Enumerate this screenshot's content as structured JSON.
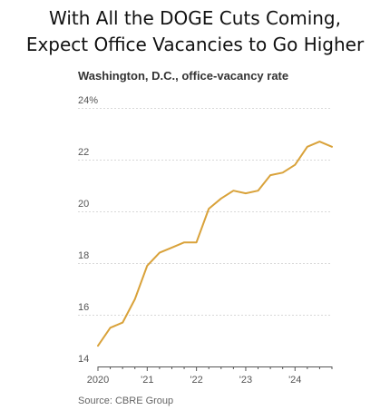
{
  "headline": {
    "line1": "With All the DOGE Cuts Coming,",
    "line2": "Expect Office Vacancies to Go Higher"
  },
  "source": "Source: CBRE Group",
  "colors": {
    "line": "#d9a23a",
    "grid": "#d9d9d9",
    "text": "#333333"
  },
  "chart_data": {
    "type": "line",
    "title": "Washington, D.C., office-vacancy rate",
    "xlabel": "",
    "ylabel": "",
    "ylim": [
      14,
      24
    ],
    "xlim": [
      2020.0,
      2024.75
    ],
    "y_ticks": [
      {
        "value": 24,
        "label": "24%"
      },
      {
        "value": 22,
        "label": "22"
      },
      {
        "value": 20,
        "label": "20"
      },
      {
        "value": 18,
        "label": "18"
      },
      {
        "value": 16,
        "label": "16"
      },
      {
        "value": 14,
        "label": "14"
      }
    ],
    "x_ticks": [
      {
        "value": 2020,
        "label": "2020"
      },
      {
        "value": 2021,
        "label": "'21"
      },
      {
        "value": 2022,
        "label": "'22"
      },
      {
        "value": 2023,
        "label": "'23"
      },
      {
        "value": 2024,
        "label": "'24"
      }
    ],
    "grid": true,
    "legend": "none",
    "series": [
      {
        "x": [
          2020.0,
          2020.25,
          2020.5,
          2020.75,
          2021.0,
          2021.25,
          2021.5,
          2021.75,
          2022.0,
          2022.25,
          2022.5,
          2022.75,
          2023.0,
          2023.25,
          2023.5,
          2023.75,
          2024.0,
          2024.25,
          2024.5,
          2024.75
        ],
        "values": [
          14.8,
          15.5,
          15.7,
          16.6,
          17.9,
          18.4,
          18.6,
          18.8,
          18.8,
          20.1,
          20.5,
          20.8,
          20.7,
          20.8,
          21.4,
          21.5,
          21.8,
          22.5,
          22.7,
          22.5
        ]
      }
    ]
  }
}
